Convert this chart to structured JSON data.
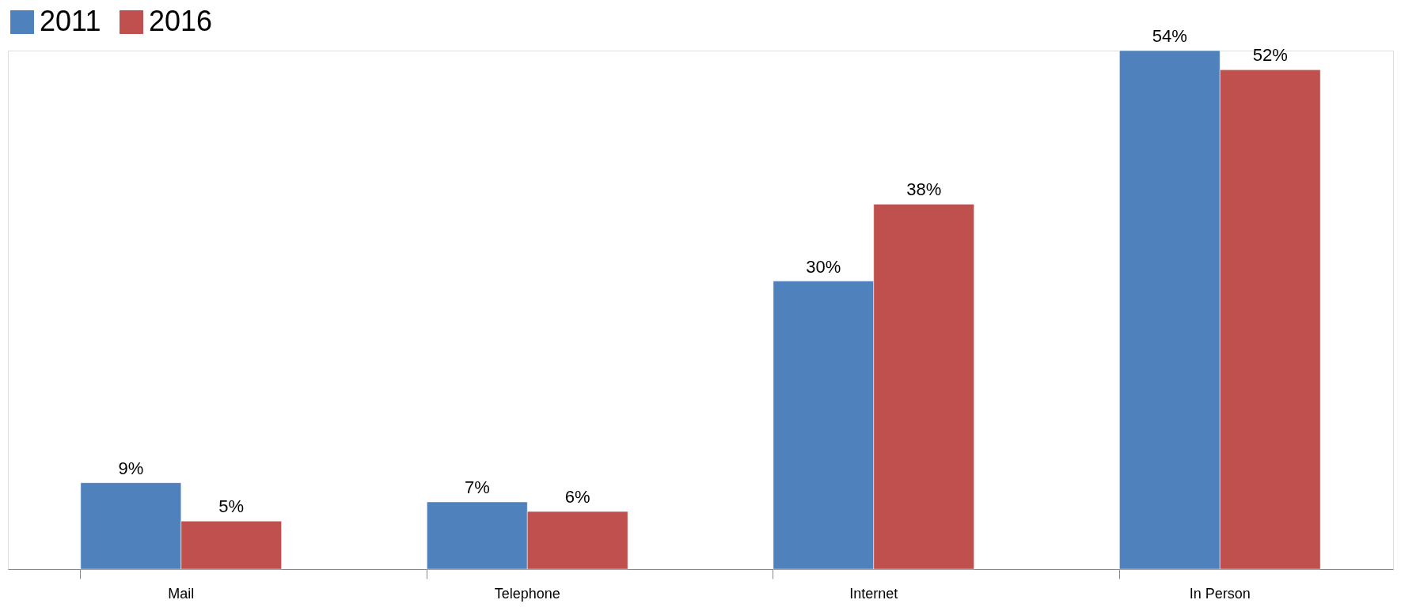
{
  "chart_data": {
    "type": "bar",
    "categories": [
      "Mail",
      "Telephone",
      "Internet",
      "In Person"
    ],
    "series": [
      {
        "name": "2011",
        "color": "#4f81bd",
        "values": [
          9,
          7,
          30,
          54
        ],
        "value_labels": [
          "9%",
          "7%",
          "30%",
          "54%"
        ]
      },
      {
        "name": "2016",
        "color": "#c0504d",
        "values": [
          5,
          6,
          38,
          52
        ],
        "value_labels": [
          "5%",
          "6%",
          "38%",
          "52%"
        ]
      }
    ],
    "legend": "top",
    "grid": false
  }
}
